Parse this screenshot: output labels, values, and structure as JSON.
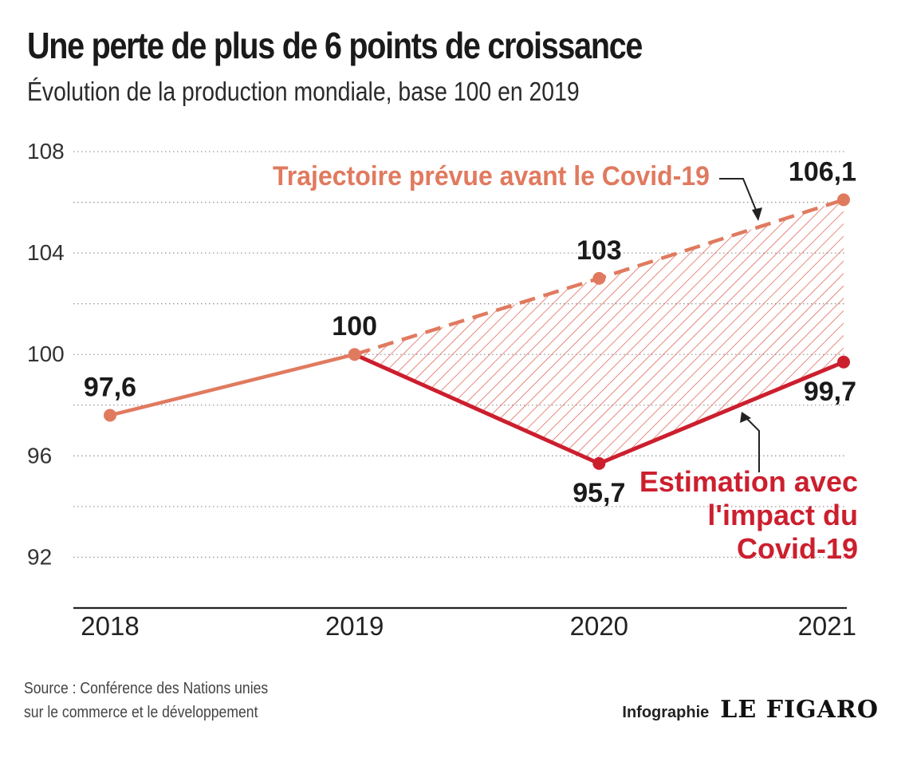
{
  "header": {
    "title": "Une perte de plus de 6 points de croissance",
    "subtitle": "Évolution de la production mondiale, base 100 en 2019"
  },
  "footer": {
    "source_line1": "Source : Conférence des Nations unies",
    "source_line2": "sur le commerce et le développement",
    "credit_label": "Infographie",
    "brand": "LE FIGARO"
  },
  "colors": {
    "forecast": "#e07a5f",
    "estimate": "#cc1f2e",
    "hatch": "#e06b5c",
    "grid": "#9a9a9a",
    "axis": "#222222",
    "text": "#1a1a1a"
  },
  "chart_data": {
    "type": "line",
    "title": "Une perte de plus de 6 points de croissance",
    "subtitle": "Évolution de la production mondiale, base 100 en 2019",
    "x": [
      "2018",
      "2019",
      "2020",
      "2021"
    ],
    "ylim": [
      90,
      108
    ],
    "yticks": [
      92,
      96,
      100,
      104,
      108
    ],
    "grid": true,
    "series": [
      {
        "name": "Trajectoire prévue avant le Covid-19",
        "style": "dashed",
        "points": [
          {
            "x": "2019",
            "y": 100
          },
          {
            "x": "2020",
            "y": 103
          },
          {
            "x": "2021",
            "y": 106.1
          }
        ]
      },
      {
        "name": "Estimation avec l'impact du Covid-19",
        "label_lines": [
          "Estimation avec",
          "l'impact du",
          "Covid-19"
        ],
        "style": "solid",
        "points": [
          {
            "x": "2019",
            "y": 100
          },
          {
            "x": "2020",
            "y": 95.7
          },
          {
            "x": "2021",
            "y": 99.7
          }
        ]
      }
    ],
    "history": {
      "style": "solid",
      "points": [
        {
          "x": "2018",
          "y": 97.6
        },
        {
          "x": "2019",
          "y": 100
        }
      ]
    },
    "data_labels": [
      {
        "x": "2018",
        "y": 97.6,
        "text": "97,6",
        "pos": "above"
      },
      {
        "x": "2019",
        "y": 100,
        "text": "100",
        "pos": "above"
      },
      {
        "x": "2020",
        "y": 103,
        "text": "103",
        "pos": "above"
      },
      {
        "x": "2021",
        "y": 106.1,
        "text": "106,1",
        "pos": "above"
      },
      {
        "x": "2020",
        "y": 95.7,
        "text": "95,7",
        "pos": "below"
      },
      {
        "x": "2021",
        "y": 99.7,
        "text": "99,7",
        "pos": "below"
      }
    ],
    "forecast_label": "Trajectoire prévue avant le Covid‑19",
    "estimate_label_lines": [
      "Estimation avec",
      "l'impact du",
      "Covid‑19"
    ],
    "shaded_gap": "hatched area between forecast and estimate, 2019-2021"
  }
}
